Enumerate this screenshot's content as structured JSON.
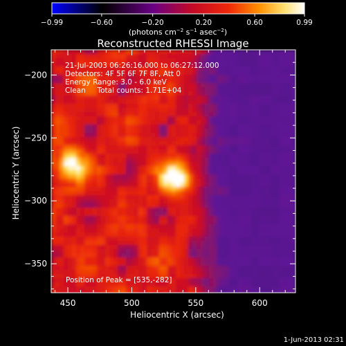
{
  "chart_data": {
    "type": "heatmap",
    "title": "Reconstructed RHESSI Image",
    "xlabel": "Heliocentric X (arcsec)",
    "ylabel": "Heliocentric Y (arcsec)",
    "xlim": [
      437,
      628
    ],
    "ylim": [
      -373,
      -180
    ],
    "xticks": [
      450,
      500,
      550,
      600
    ],
    "yticks": [
      -200,
      -250,
      -300,
      -350
    ],
    "xtick_labels": [
      "450",
      "500",
      "550",
      "600"
    ],
    "ytick_labels": [
      "−200",
      "−250",
      "−300",
      "−350"
    ],
    "colorbar": {
      "range": [
        -0.99,
        0.99
      ],
      "ticks": [
        -0.99,
        -0.6,
        -0.2,
        0.2,
        0.6,
        0.99
      ],
      "tick_labels": [
        "−0.99",
        "−0.60",
        "−0.20",
        "0.20",
        "0.60",
        "0.99"
      ],
      "units_parts": [
        "(photons cm",
        "−2",
        " s",
        "−1",
        " asec",
        "−2",
        ")"
      ],
      "colors": [
        "#0000ff",
        "#000000",
        "#700090",
        "#e01808",
        "#ffb000",
        "#ffffff"
      ]
    },
    "annotations": [
      "21-Jul-2003 06:26:16.000 to 06:27:12.000",
      "Detectors: 4F 5F 6F 7F 8F, Att 0",
      "Energy Range: 3.0 - 6.0 keV",
      "Clean     Total counts: 1.71E+04"
    ],
    "peak_label": "Position of Peak = [535,-282]",
    "peaks": [
      {
        "x": 535,
        "y": -282,
        "value": 0.99
      },
      {
        "x": 452,
        "y": -272,
        "value": 0.93
      }
    ]
  },
  "footer": {
    "timestamp": "1-Jun-2013 02:31"
  }
}
